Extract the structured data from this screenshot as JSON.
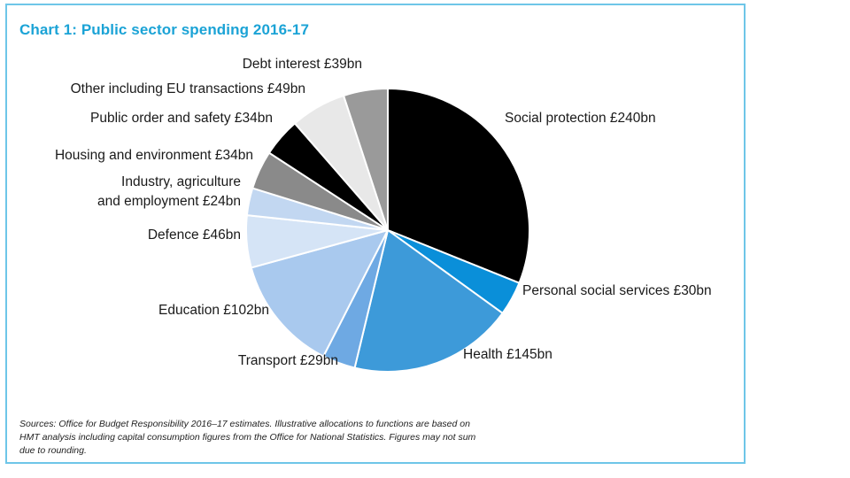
{
  "chart_data": {
    "type": "pie",
    "title": "Chart 1: Public sector spending 2016-17",
    "slices": [
      {
        "label": "Social protection £240bn",
        "value": 240,
        "color": "#000000"
      },
      {
        "label": "Personal social services £30bn",
        "value": 30,
        "color": "#0a8fd9"
      },
      {
        "label": "Health £145bn",
        "value": 145,
        "color": "#3d9ad9"
      },
      {
        "label": "Transport £29bn",
        "value": 29,
        "color": "#6ea9e3"
      },
      {
        "label": "Education £102bn",
        "value": 102,
        "color": "#a9c9ee"
      },
      {
        "label": "Defence £46bn",
        "value": 46,
        "color": "#d5e4f6"
      },
      {
        "label_lines": [
          "Industry, agriculture",
          "and employment £24bn"
        ],
        "value": 24,
        "color": "#c2d7f1"
      },
      {
        "label": "Housing and environment £34bn",
        "value": 34,
        "color": "#8a8a8a"
      },
      {
        "label": "Public order and safety £34bn",
        "value": 34,
        "color": "#000000"
      },
      {
        "label": "Other including EU transactions £49bn",
        "value": 49,
        "color": "#e8e8e8"
      },
      {
        "label": "Debt interest £39bn",
        "value": 39,
        "color": "#9a9a9a"
      }
    ]
  },
  "source_lines": [
    "Sources: Office for Budget Responsibility 2016–17 estimates. Illustrative allocations to functions are based on",
    "HMT analysis including capital consumption figures from the Office for National Statistics. Figures may not sum",
    "due to rounding."
  ]
}
